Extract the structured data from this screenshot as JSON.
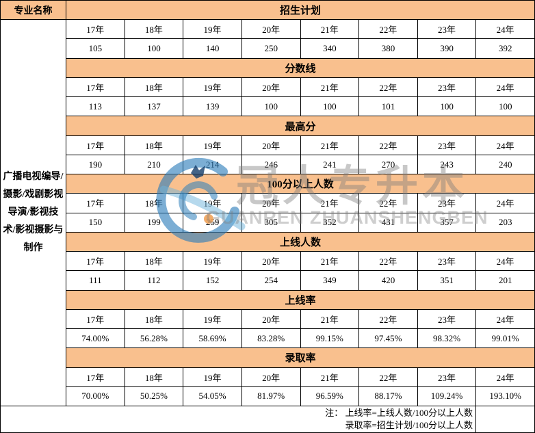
{
  "colors": {
    "header_bg": "#F9C08E",
    "border": "#000000",
    "watermark_gray": "#C9C9C9",
    "logo_blue": "#2B7DB9",
    "logo_orange": "#EFA055"
  },
  "table": {
    "left_header": "专业名称",
    "major_name": "广播电视编导/摄影/戏剧影视导演/影视技术/影视摄影与制作",
    "years": [
      "17年",
      "18年",
      "19年",
      "20年",
      "21年",
      "22年",
      "23年",
      "24年"
    ],
    "sections": [
      {
        "title": "招生计划",
        "values": [
          "105",
          "100",
          "140",
          "250",
          "340",
          "380",
          "390",
          "392"
        ]
      },
      {
        "title": "分数线",
        "values": [
          "113",
          "137",
          "139",
          "100",
          "100",
          "101",
          "100",
          "100"
        ]
      },
      {
        "title": "最高分",
        "values": [
          "190",
          "210",
          "214",
          "246",
          "241",
          "270",
          "243",
          "240"
        ]
      },
      {
        "title": "100分以上人数",
        "values": [
          "150",
          "199",
          "259",
          "305",
          "352",
          "431",
          "357",
          "203"
        ]
      },
      {
        "title": "上线人数",
        "values": [
          "111",
          "112",
          "152",
          "254",
          "349",
          "420",
          "351",
          "201"
        ]
      },
      {
        "title": "上线率",
        "values": [
          "74.00%",
          "56.28%",
          "58.69%",
          "83.28%",
          "99.15%",
          "97.45%",
          "98.32%",
          "99.01%"
        ]
      },
      {
        "title": "录取率",
        "values": [
          "70.00%",
          "50.25%",
          "54.05%",
          "81.97%",
          "96.59%",
          "88.17%",
          "109.24%",
          "193.10%"
        ]
      }
    ],
    "notes": {
      "line1": "注： 上线率=上线人数/100分以上人数",
      "line2": "录取率=招生计划/100分以上人数"
    }
  },
  "watermark": {
    "logo": "guanren-logo",
    "text": "冠人专升本",
    "subtext": "GUANREN ZHUANSHENGBEN"
  },
  "chart_data": {
    "type": "table",
    "title": "广播电视编导/摄影/戏剧影视导演/影视技术/影视摄影与制作 专升本历年数据",
    "row_header_label": "专业名称",
    "row_header_value": "广播电视编导/摄影/戏剧影视导演/影视技术/影视摄影与制作",
    "categories": [
      "17年",
      "18年",
      "19年",
      "20年",
      "21年",
      "22年",
      "23年",
      "24年"
    ],
    "series": [
      {
        "name": "招生计划",
        "values": [
          105,
          100,
          140,
          250,
          340,
          380,
          390,
          392
        ]
      },
      {
        "name": "分数线",
        "values": [
          113,
          137,
          139,
          100,
          100,
          101,
          100,
          100
        ]
      },
      {
        "name": "最高分",
        "values": [
          190,
          210,
          214,
          246,
          241,
          270,
          243,
          240
        ]
      },
      {
        "name": "100分以上人数",
        "values": [
          150,
          199,
          259,
          305,
          352,
          431,
          357,
          203
        ]
      },
      {
        "name": "上线人数",
        "values": [
          111,
          112,
          152,
          254,
          349,
          420,
          351,
          201
        ]
      },
      {
        "name": "上线率",
        "values": [
          "74.00%",
          "56.28%",
          "58.69%",
          "83.28%",
          "99.15%",
          "97.45%",
          "98.32%",
          "99.01%"
        ]
      },
      {
        "name": "录取率",
        "values": [
          "70.00%",
          "50.25%",
          "54.05%",
          "81.97%",
          "96.59%",
          "88.17%",
          "109.24%",
          "193.10%"
        ]
      }
    ],
    "notes": [
      "上线率=上线人数/100分以上人数",
      "录取率=招生计划/100分以上人数"
    ]
  }
}
